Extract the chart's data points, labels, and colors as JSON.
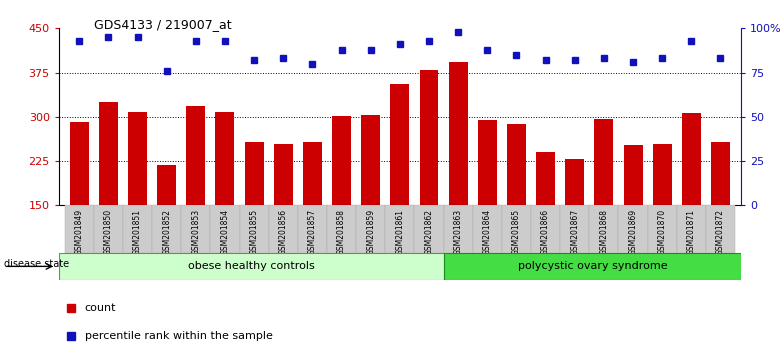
{
  "title": "GDS4133 / 219007_at",
  "samples": [
    "GSM201849",
    "GSM201850",
    "GSM201851",
    "GSM201852",
    "GSM201853",
    "GSM201854",
    "GSM201855",
    "GSM201856",
    "GSM201857",
    "GSM201858",
    "GSM201859",
    "GSM201861",
    "GSM201862",
    "GSM201863",
    "GSM201864",
    "GSM201865",
    "GSM201866",
    "GSM201867",
    "GSM201868",
    "GSM201869",
    "GSM201870",
    "GSM201871",
    "GSM201872"
  ],
  "counts": [
    291,
    325,
    308,
    218,
    318,
    308,
    258,
    254,
    258,
    302,
    303,
    355,
    380,
    393,
    294,
    287,
    240,
    228,
    296,
    252,
    254,
    307,
    257
  ],
  "percentiles": [
    93,
    95,
    95,
    76,
    93,
    93,
    82,
    83,
    80,
    88,
    88,
    91,
    93,
    98,
    88,
    85,
    82,
    82,
    83,
    81,
    83,
    93,
    83
  ],
  "group1_label": "obese healthy controls",
  "group1_count": 13,
  "group2_label": "polycystic ovary syndrome",
  "group2_count": 10,
  "disease_state_label": "disease state",
  "ymin": 150,
  "ymax": 450,
  "yticks": [
    150,
    225,
    300,
    375,
    450
  ],
  "pct_min": 0,
  "pct_max": 100,
  "pct_ticks": [
    0,
    25,
    50,
    75,
    100
  ],
  "pct_tick_labels": [
    "0",
    "25",
    "50",
    "75",
    "100%"
  ],
  "bar_color": "#cc0000",
  "dot_color": "#1111bb",
  "group1_color": "#ccffcc",
  "group2_color": "#44dd44",
  "bg_color": "#ffffff",
  "tick_bg_color": "#cccccc",
  "legend_count_label": "count",
  "legend_pct_label": "percentile rank within the sample"
}
